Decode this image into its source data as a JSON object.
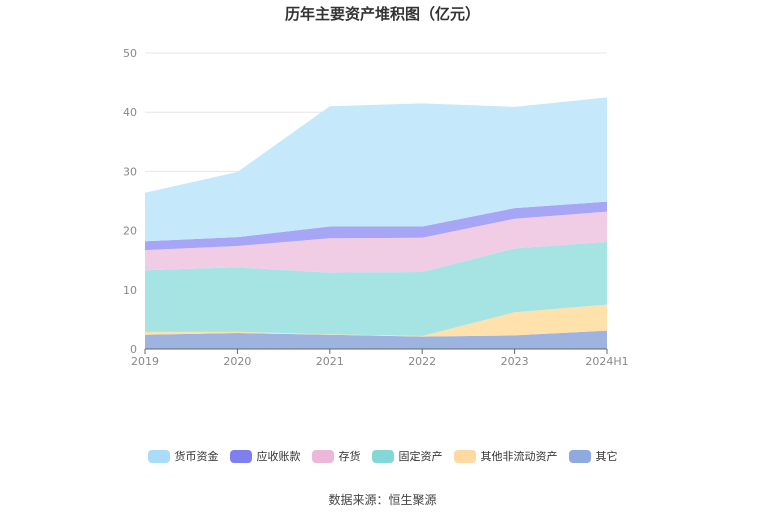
{
  "chart_data": {
    "type": "area",
    "stacked": true,
    "title": "历年主要资产堆积图（亿元）",
    "categories": [
      "2019",
      "2020",
      "2021",
      "2022",
      "2023",
      "2024H1"
    ],
    "ylim": [
      0,
      50
    ],
    "yticks": [
      0,
      10,
      20,
      30,
      40,
      50
    ],
    "grid": true,
    "legend_position": "bottom",
    "series": [
      {
        "name": "其它",
        "color": "#9db3e0",
        "values": [
          2.4,
          2.7,
          2.4,
          2.1,
          2.3,
          3.1
        ]
      },
      {
        "name": "其他非流动资产",
        "color": "#ffe1ab",
        "values": [
          0.5,
          0.2,
          0.1,
          0.1,
          3.9,
          4.4
        ]
      },
      {
        "name": "固定资产",
        "color": "#a6e4e4",
        "values": [
          10.4,
          10.9,
          10.4,
          10.8,
          10.8,
          10.6
        ]
      },
      {
        "name": "存货",
        "color": "#f1cde5",
        "values": [
          3.4,
          3.6,
          5.8,
          5.8,
          5.0,
          5.1
        ]
      },
      {
        "name": "应收账款",
        "color": "#a7a5f5",
        "values": [
          1.5,
          1.5,
          2.0,
          1.9,
          1.8,
          1.7
        ]
      },
      {
        "name": "货币资金",
        "color": "#c5e9fa",
        "values": [
          8.2,
          11.0,
          20.3,
          20.8,
          17.1,
          17.6
        ]
      }
    ]
  },
  "legend": [
    {
      "name": "货币资金",
      "color": "#a8dcf8"
    },
    {
      "name": "应收账款",
      "color": "#7f7ff0"
    },
    {
      "name": "存货",
      "color": "#ebb8da"
    },
    {
      "name": "固定资产",
      "color": "#83d7d6"
    },
    {
      "name": "其他非流动资产",
      "color": "#ffd9a2"
    },
    {
      "name": "其它",
      "color": "#8eaadf"
    }
  ],
  "source_text": "数据来源：恒生聚源"
}
